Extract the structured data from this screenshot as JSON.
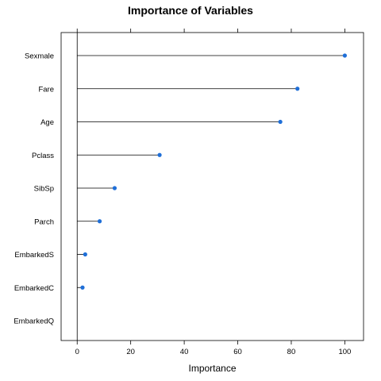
{
  "chart_data": {
    "type": "dotplot",
    "title": "Importance of Variables",
    "xlabel": "Importance",
    "xlim": [
      -6,
      107
    ],
    "x_ticks": [
      0,
      20,
      40,
      60,
      80,
      100
    ],
    "x_tick_labels": [
      "0",
      "20",
      "40",
      "60",
      "80",
      "100"
    ],
    "grid": false,
    "categories": [
      "Sexmale",
      "Fare",
      "Age",
      "Pclass",
      "SibSp",
      "Parch",
      "EmbarkedS",
      "EmbarkedC",
      "EmbarkedQ"
    ],
    "values": [
      100,
      82.3,
      75.9,
      30.8,
      14.0,
      8.4,
      3.0,
      2.0,
      0
    ],
    "point_color": "#1f6fd8"
  }
}
